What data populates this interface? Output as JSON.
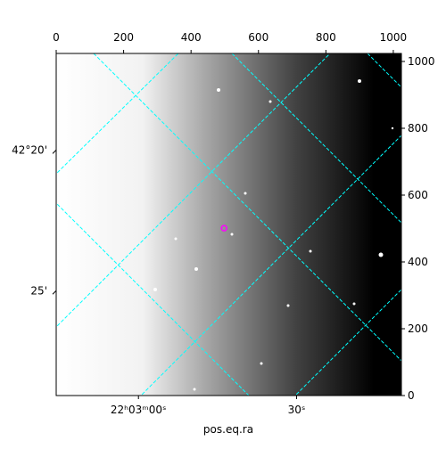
{
  "chart_data": {
    "type": "scatter",
    "x_label": "pos.eq.ra",
    "xlim": [
      0,
      1024
    ],
    "ylim": [
      0,
      1024
    ],
    "xticks": [
      0,
      200,
      400,
      600,
      800,
      1000
    ],
    "yticks": [
      0,
      200,
      400,
      600,
      800,
      1000
    ],
    "wcs_xticks": [
      {
        "value": 244,
        "label": "22ʰ03ᵐ00ˢ"
      },
      {
        "value": 713,
        "label": "30ˢ"
      }
    ],
    "wcs_yticks": [
      {
        "value": 735,
        "label": "42°20'"
      },
      {
        "value": 314,
        "label": "25'"
      }
    ],
    "series": [
      {
        "color": "#ff00ff",
        "x": [
          498
        ],
        "values": [
          501
        ]
      }
    ]
  }
}
